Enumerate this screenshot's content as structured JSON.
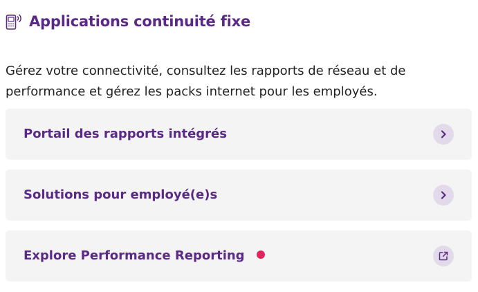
{
  "section": {
    "title": "Applications continuité fixe",
    "icon": "phone-signal-icon",
    "description": "Gérez votre connectivité, consultez les rapports de réseau et de performance et gérez les packs internet pour les employés."
  },
  "links": [
    {
      "label": "Portail des rapports intégrés",
      "action_icon": "chevron-right-icon"
    },
    {
      "label": "Solutions pour employé(e)s",
      "action_icon": "chevron-right-icon"
    },
    {
      "label": "Explore Performance Reporting",
      "action_icon": "external-link-icon",
      "has_notification_dot": true
    }
  ],
  "colors": {
    "accent": "#5b2a86",
    "card_background": "#f4f4f4",
    "icon_background": "#e2daeb",
    "notification_dot": "#e0245e",
    "body_text": "#222222"
  }
}
